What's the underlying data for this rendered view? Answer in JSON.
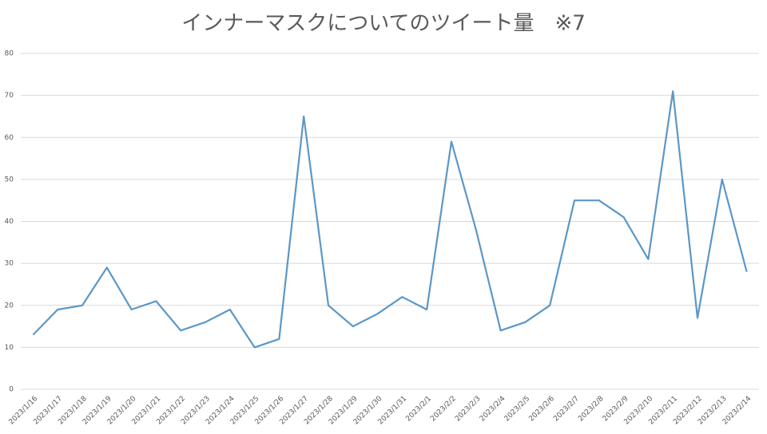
{
  "chart_data": {
    "type": "line",
    "title": "インナーマスクについてのツイート量　※7",
    "categories": [
      "2023/1/16",
      "2023/1/17",
      "2023/1/18",
      "2023/1/19",
      "2023/1/20",
      "2023/1/21",
      "2023/1/22",
      "2023/1/23",
      "2023/1/24",
      "2023/1/25",
      "2023/1/26",
      "2023/1/27",
      "2023/1/28",
      "2023/1/29",
      "2023/1/30",
      "2023/1/31",
      "2023/2/1",
      "2023/2/2",
      "2023/2/3",
      "2023/2/4",
      "2023/2/5",
      "2023/2/6",
      "2023/2/7",
      "2023/2/8",
      "2023/2/9",
      "2023/2/10",
      "2023/2/11",
      "2023/2/12",
      "2023/2/13",
      "2023/2/14"
    ],
    "values": [
      13,
      19,
      20,
      29,
      19,
      21,
      14,
      16,
      19,
      10,
      12,
      65,
      20,
      15,
      18,
      22,
      19,
      59,
      38,
      14,
      16,
      20,
      45,
      45,
      41,
      31,
      71,
      17,
      50,
      28
    ],
    "color": "#5b97c7",
    "ylim": [
      0,
      80
    ],
    "yticks": [
      0,
      10,
      20,
      30,
      40,
      50,
      60,
      70,
      80
    ],
    "grid": true
  }
}
